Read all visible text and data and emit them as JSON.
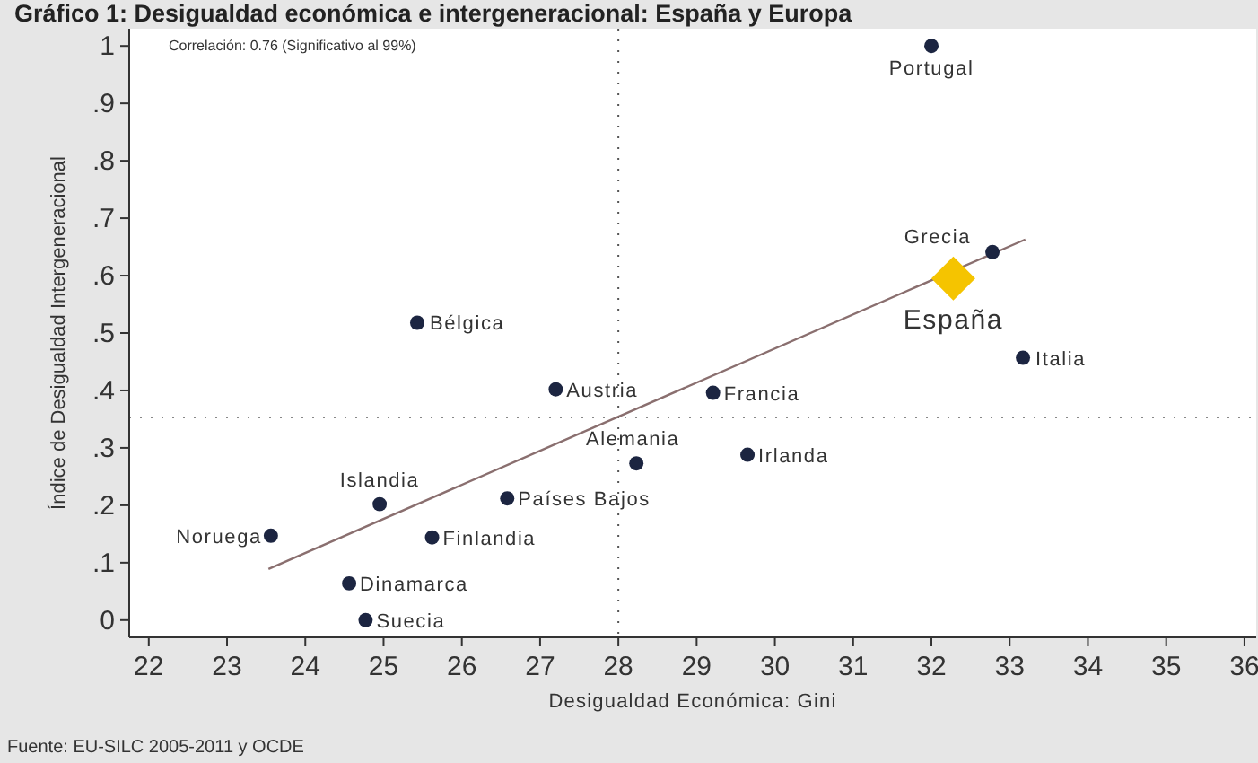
{
  "chart_data": {
    "type": "scatter",
    "title": "Gráfico 1: Desigualdad económica e intergeneracional: España y Europa",
    "xlabel": "Desigualdad Económica: Gini",
    "ylabel": "Índice de Desigualdad Intergeneracional",
    "xlim": [
      21.75,
      36.15
    ],
    "ylim": [
      -0.03,
      1.03
    ],
    "xticks": [
      22,
      23,
      24,
      25,
      26,
      27,
      28,
      29,
      30,
      31,
      32,
      33,
      34,
      35,
      36
    ],
    "yticks": [
      {
        "value": 0,
        "label": "0"
      },
      {
        "value": 0.1,
        "label": ".1"
      },
      {
        "value": 0.2,
        "label": ".2"
      },
      {
        "value": 0.3,
        "label": ".3"
      },
      {
        "value": 0.4,
        "label": ".4"
      },
      {
        "value": 0.5,
        "label": ".5"
      },
      {
        "value": 0.6,
        "label": ".6"
      },
      {
        "value": 0.7,
        "label": ".7"
      },
      {
        "value": 0.8,
        "label": ".8"
      },
      {
        "value": 0.9,
        "label": ".9"
      },
      {
        "value": 1,
        "label": "1"
      }
    ],
    "grid": false,
    "series": [
      {
        "type": "line",
        "color": "#8a6f6f",
        "x": [
          23.53,
          33.2
        ],
        "values": [
          0.089,
          0.663
        ],
        "marker": "none",
        "line_style": "solid"
      },
      {
        "color": "#1c2541",
        "marker": "circle",
        "x": [
          32.0,
          32.78,
          33.17,
          25.43,
          27.2,
          29.21,
          28.23,
          29.65,
          26.58,
          24.95,
          23.56,
          25.62,
          24.56,
          24.77
        ],
        "values": [
          1.0,
          0.641,
          0.457,
          0.518,
          0.402,
          0.396,
          0.273,
          0.288,
          0.212,
          0.202,
          0.147,
          0.144,
          0.064,
          0.0
        ]
      },
      {
        "color": "#f5c400",
        "marker": "diamond",
        "x": [
          32.28
        ],
        "values": [
          0.595
        ]
      }
    ],
    "ref_lines": [
      {
        "axis": "x",
        "value": 28,
        "color": "#555555",
        "line_style": "dotted"
      },
      {
        "axis": "y",
        "value": 0.353,
        "color": "#888888",
        "line_style": "dotted"
      }
    ],
    "annotations": [
      {
        "text": "Portugal",
        "x": 32.0,
        "y": 1.0
      },
      {
        "text": "Grecia",
        "x": 32.78,
        "y": 0.641
      },
      {
        "text": "Italia",
        "x": 33.17,
        "y": 0.457
      },
      {
        "text": "Bélgica",
        "x": 25.43,
        "y": 0.518
      },
      {
        "text": "Austria",
        "x": 27.2,
        "y": 0.402
      },
      {
        "text": "Francia",
        "x": 29.21,
        "y": 0.396
      },
      {
        "text": "Alemania",
        "x": 28.23,
        "y": 0.273
      },
      {
        "text": "Irlanda",
        "x": 29.65,
        "y": 0.288
      },
      {
        "text": "Países Bajos",
        "x": 26.58,
        "y": 0.212
      },
      {
        "text": "Islandia",
        "x": 24.95,
        "y": 0.202
      },
      {
        "text": "Noruega",
        "x": 23.56,
        "y": 0.147
      },
      {
        "text": "Finlandia",
        "x": 25.62,
        "y": 0.144
      },
      {
        "text": "Dinamarca",
        "x": 24.56,
        "y": 0.064
      },
      {
        "text": "Suecia",
        "x": 24.77,
        "y": 0.0
      },
      {
        "text": "España",
        "x": 32.28,
        "y": 0.595
      },
      "Correlación: 0.76 (Significativo al 99%)",
      "Fuente: EU-SILC 2005-2011 y OCDE"
    ]
  }
}
